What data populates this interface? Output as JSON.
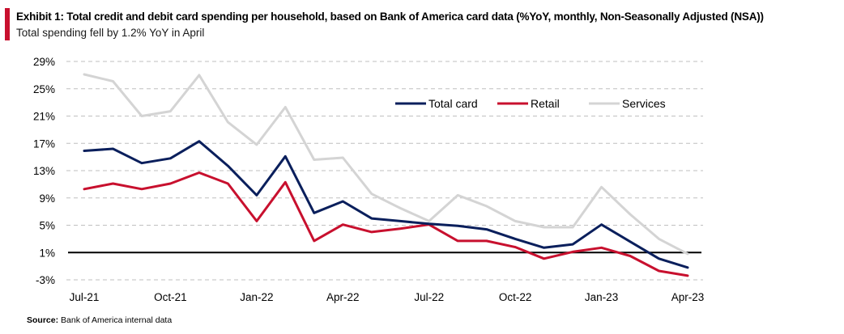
{
  "header": {
    "title": "Exhibit 1: Total credit and debit card spending per household, based on Bank of America card data (%YoY, monthly, Non-Seasonally Adjusted (NSA))",
    "subtitle": "Total spending fell by 1.2% YoY in April"
  },
  "source": {
    "label": "Source:",
    "text": "Bank of America internal data"
  },
  "colors": {
    "accent": "#c8102e",
    "total_card": "#0a1f5c",
    "retail": "#c8102e",
    "services": "#d4d4d4",
    "grid": "#bfbfbf"
  },
  "chart_data": {
    "type": "line",
    "title": "Exhibit 1: Total credit and debit card spending per household, based on Bank of America card data (%YoY, monthly, Non-Seasonally Adjusted (NSA))",
    "subtitle": "Total spending fell by 1.2% YoY in April",
    "xlabel": "",
    "ylabel": "",
    "x": [
      "Jul-21",
      "Aug-21",
      "Sep-21",
      "Oct-21",
      "Nov-21",
      "Dec-21",
      "Jan-22",
      "Feb-22",
      "Mar-22",
      "Apr-22",
      "May-22",
      "Jun-22",
      "Jul-22",
      "Aug-22",
      "Sep-22",
      "Oct-22",
      "Nov-22",
      "Dec-22",
      "Jan-23",
      "Feb-23",
      "Mar-23",
      "Apr-23"
    ],
    "x_tick_labels": [
      "Jul-21",
      "Oct-21",
      "Jan-22",
      "Apr-22",
      "Jul-22",
      "Oct-22",
      "Jan-23",
      "Apr-23"
    ],
    "x_tick_indices": [
      0,
      3,
      6,
      9,
      12,
      15,
      18,
      21
    ],
    "y_ticks": [
      29,
      25,
      21,
      17,
      13,
      9,
      5,
      1,
      -3
    ],
    "y_tick_labels": [
      "29%",
      "25%",
      "21%",
      "17%",
      "13%",
      "9%",
      "5%",
      "1%",
      "-3%"
    ],
    "ylim": [
      -3,
      29
    ],
    "grid": "horizontal-dashed",
    "legend_position": "top-right",
    "series": [
      {
        "name": "Total card",
        "values": [
          15.9,
          16.2,
          14.1,
          14.8,
          17.3,
          13.7,
          9.4,
          15.1,
          6.8,
          8.5,
          6.0,
          5.6,
          5.2,
          4.9,
          4.4,
          3.0,
          1.7,
          2.2,
          5.1,
          2.6,
          0.1,
          -1.2
        ]
      },
      {
        "name": "Retail",
        "values": [
          10.3,
          11.1,
          10.3,
          11.1,
          12.7,
          11.1,
          5.6,
          11.3,
          2.7,
          5.1,
          4.0,
          4.5,
          5.1,
          2.7,
          2.7,
          1.8,
          0.1,
          1.1,
          1.7,
          0.5,
          -1.7,
          -2.4
        ]
      },
      {
        "name": "Services",
        "values": [
          27.1,
          26.1,
          21.0,
          21.7,
          27.0,
          20.1,
          16.8,
          22.3,
          14.6,
          14.9,
          9.6,
          7.5,
          5.6,
          9.4,
          7.8,
          5.6,
          4.7,
          4.7,
          10.6,
          6.6,
          3.0,
          0.8
        ]
      }
    ]
  }
}
